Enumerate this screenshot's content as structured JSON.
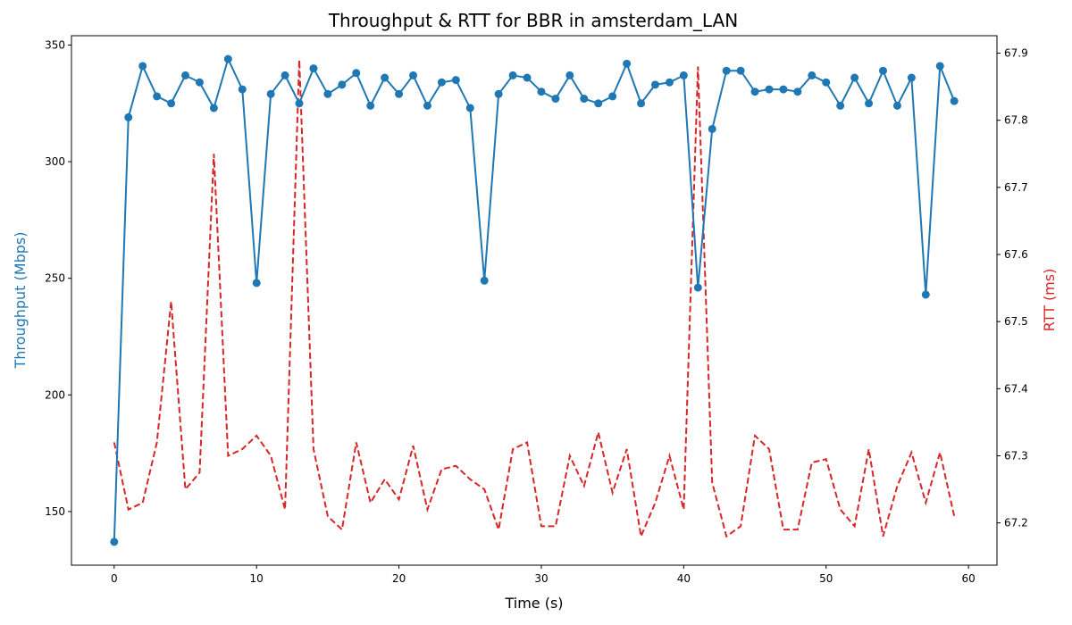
{
  "chart_data": {
    "type": "line",
    "title": "Throughput & RTT for BBR in amsterdam_LAN",
    "xlabel": "Time (s)",
    "ylabel_left": "Throughput (Mbps)",
    "ylabel_right": "RTT (ms)",
    "xlim": [
      -3,
      62
    ],
    "ylim_left": [
      127,
      354
    ],
    "ylim_right": [
      67.137,
      67.926
    ],
    "x_ticks": [
      0,
      10,
      20,
      30,
      40,
      50,
      60
    ],
    "y_ticks_left": [
      150,
      200,
      250,
      300,
      350
    ],
    "y_ticks_right": [
      67.2,
      67.3,
      67.4,
      67.5,
      67.6,
      67.7,
      67.8,
      67.9
    ],
    "grid": false,
    "legend": "none",
    "colors": {
      "throughput": "#1f77b4",
      "rtt": "#d62728"
    },
    "x": [
      0,
      1,
      2,
      3,
      4,
      5,
      6,
      7,
      8,
      9,
      10,
      11,
      12,
      13,
      14,
      15,
      16,
      17,
      18,
      19,
      20,
      21,
      22,
      23,
      24,
      25,
      26,
      27,
      28,
      29,
      30,
      31,
      32,
      33,
      34,
      35,
      36,
      37,
      38,
      39,
      40,
      41,
      42,
      43,
      44,
      45,
      46,
      47,
      48,
      49,
      50,
      51,
      52,
      53,
      54,
      55,
      56,
      57,
      58,
      59
    ],
    "series": [
      {
        "axis": "left",
        "style": "solid-markers",
        "values": [
          137,
          319,
          341,
          328,
          325,
          337,
          334,
          323,
          344,
          331,
          248,
          329,
          337,
          325,
          340,
          329,
          333,
          338,
          324,
          336,
          329,
          337,
          324,
          334,
          335,
          323,
          249,
          329,
          337,
          336,
          330,
          327,
          337,
          327,
          325,
          328,
          342,
          325,
          333,
          334,
          337,
          246,
          314,
          339,
          339,
          330,
          331,
          331,
          330,
          337,
          334,
          324,
          336,
          325,
          339,
          324,
          336,
          243,
          341,
          326
        ]
      },
      {
        "axis": "right",
        "style": "dashed",
        "values": [
          67.32,
          67.22,
          67.23,
          67.32,
          67.53,
          67.25,
          67.275,
          67.75,
          67.3,
          67.31,
          67.33,
          67.3,
          67.22,
          67.89,
          67.31,
          67.21,
          67.19,
          67.32,
          67.23,
          67.265,
          67.235,
          67.315,
          67.22,
          67.28,
          67.285,
          67.265,
          67.25,
          67.19,
          67.31,
          67.32,
          67.195,
          67.195,
          67.3,
          67.255,
          67.335,
          67.245,
          67.31,
          67.18,
          67.23,
          67.3,
          67.22,
          67.88,
          67.26,
          67.18,
          67.195,
          67.33,
          67.31,
          67.19,
          67.19,
          67.29,
          67.295,
          67.22,
          67.195,
          67.31,
          67.18,
          67.255,
          67.305,
          67.23,
          67.305,
          67.21
        ]
      }
    ]
  }
}
